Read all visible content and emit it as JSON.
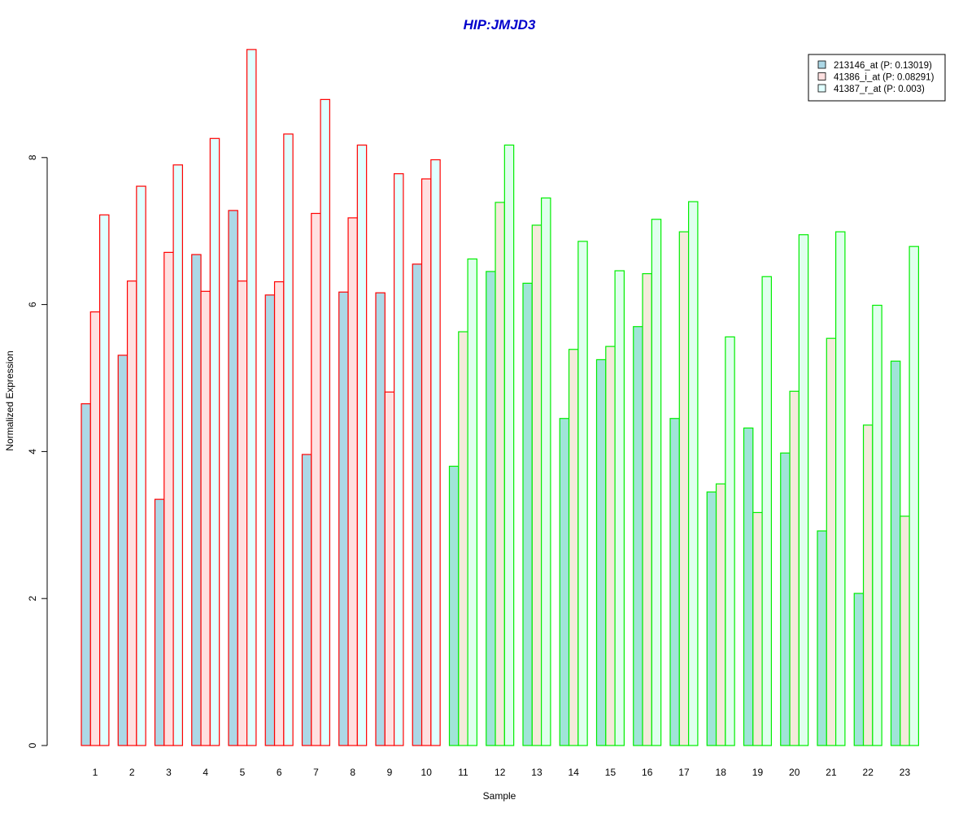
{
  "chart_data": {
    "type": "bar",
    "title": "HIP:JMJD3",
    "xlabel": "Sample",
    "ylabel": "Normalized Expression",
    "ylim": [
      0,
      9.5
    ],
    "yticks": [
      0,
      2,
      4,
      6,
      8
    ],
    "categories": [
      "1",
      "2",
      "3",
      "4",
      "5",
      "6",
      "7",
      "8",
      "9",
      "10",
      "11",
      "12",
      "13",
      "14",
      "15",
      "16",
      "17",
      "18",
      "19",
      "20",
      "21",
      "22",
      "23"
    ],
    "group_colors": {
      "group1_border": "#ff0000",
      "group2_border": "#00ee00",
      "group1_count": 10
    },
    "title_color": "#0000cc",
    "legend_position": "top-right",
    "series": [
      {
        "name": "213146_at (P: 0.13019)",
        "fill_group1": "#add8e6",
        "fill_group2": "#a0e4d8",
        "values": [
          4.65,
          5.31,
          3.35,
          6.68,
          7.28,
          6.13,
          3.96,
          6.17,
          6.16,
          6.55,
          3.8,
          6.45,
          6.29,
          4.45,
          5.25,
          5.7,
          4.45,
          3.45,
          4.32,
          3.98,
          2.92,
          2.07,
          5.23
        ]
      },
      {
        "name": "41386_i_at (P: 0.08291)",
        "fill_group1": "#ffe0e0",
        "fill_group2": "#f4eadb",
        "values": [
          5.9,
          6.32,
          6.71,
          6.18,
          6.32,
          6.31,
          7.24,
          7.18,
          4.81,
          7.71,
          5.63,
          7.39,
          7.08,
          5.39,
          5.43,
          6.42,
          6.99,
          3.56,
          3.17,
          4.82,
          5.54,
          4.36,
          3.12
        ]
      },
      {
        "name": "41387_r_at (P: 0.003)",
        "fill_group1": "#e0ffff",
        "fill_group2": "#e0ffee",
        "values": [
          7.22,
          7.61,
          7.9,
          8.26,
          9.47,
          8.32,
          8.79,
          8.17,
          7.78,
          7.97,
          6.62,
          8.17,
          7.45,
          6.86,
          6.46,
          7.16,
          7.4,
          5.56,
          6.38,
          6.95,
          6.99,
          5.99,
          6.79
        ]
      }
    ]
  }
}
